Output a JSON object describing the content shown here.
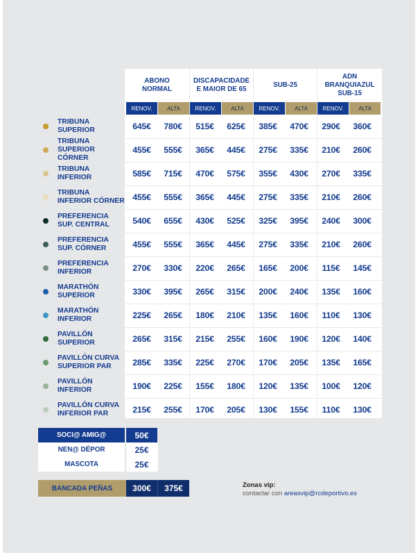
{
  "headers": [
    {
      "label": "ABONO\nNORMAL"
    },
    {
      "label": "DISCAPACIDADE\nE MAIOR DE 65"
    },
    {
      "label": "SUB-25"
    },
    {
      "label": "ADN\nBRANQUIAZUL\nSUB-15"
    }
  ],
  "subheaders": {
    "renov": "RENOV.",
    "alta": "ALTA"
  },
  "rows": [
    {
      "zone": "TRIBUNA\nSUPERIOR",
      "color": "#c89a2e",
      "prices": [
        "645€",
        "780€",
        "515€",
        "625€",
        "385€",
        "470€",
        "290€",
        "360€"
      ]
    },
    {
      "zone": "TRIBUNA\nSUPERIOR CÓRNER",
      "color": "#d0a95a",
      "prices": [
        "455€",
        "555€",
        "365€",
        "445€",
        "275€",
        "335€",
        "210€",
        "260€"
      ]
    },
    {
      "zone": "TRIBUNA\nINFERIOR",
      "color": "#d8c48d",
      "prices": [
        "585€",
        "715€",
        "470€",
        "575€",
        "355€",
        "430€",
        "270€",
        "335€"
      ]
    },
    {
      "zone": "TRIBUNA\nINFERIOR CÓRNER",
      "color": "#ebdcbb",
      "prices": [
        "455€",
        "555€",
        "365€",
        "445€",
        "275€",
        "335€",
        "210€",
        "260€"
      ]
    },
    {
      "zone": "PREFERENCIA\nSUP. CENTRAL",
      "color": "#0d2c2a",
      "prices": [
        "540€",
        "655€",
        "430€",
        "525€",
        "325€",
        "395€",
        "240€",
        "300€"
      ]
    },
    {
      "zone": "PREFERENCIA\nSUP. CÓRNER",
      "color": "#3f5e59",
      "prices": [
        "455€",
        "555€",
        "365€",
        "445€",
        "275€",
        "335€",
        "210€",
        "260€"
      ]
    },
    {
      "zone": "PREFERENCIA\nINFERIOR",
      "color": "#7c8f89",
      "prices": [
        "270€",
        "330€",
        "220€",
        "265€",
        "165€",
        "200€",
        "115€",
        "145€"
      ]
    },
    {
      "zone": "MARATHÓN\nSUPERIOR",
      "color": "#1d5fa6",
      "prices": [
        "330€",
        "395€",
        "265€",
        "315€",
        "200€",
        "240€",
        "135€",
        "160€"
      ]
    },
    {
      "zone": "MARATHÓN\nINFERIOR",
      "color": "#3e97c4",
      "prices": [
        "225€",
        "265€",
        "180€",
        "210€",
        "135€",
        "160€",
        "110€",
        "130€"
      ]
    },
    {
      "zone": "PAVILLÓN\nSUPERIOR",
      "color": "#2f6b3f",
      "prices": [
        "265€",
        "315€",
        "215€",
        "255€",
        "160€",
        "190€",
        "120€",
        "140€"
      ]
    },
    {
      "zone": "PAVILLÓN CURVA\nSUPERIOR PAR",
      "color": "#6a9a70",
      "prices": [
        "285€",
        "335€",
        "225€",
        "270€",
        "170€",
        "205€",
        "135€",
        "165€"
      ]
    },
    {
      "zone": "PAVILLÓN\nINFERIOR",
      "color": "#9ab39b",
      "prices": [
        "190€",
        "225€",
        "155€",
        "180€",
        "120€",
        "135€",
        "100€",
        "120€"
      ]
    },
    {
      "zone": "PAVILLÓN CURVA\nINFERIOR PAR",
      "color": "#bccdbd",
      "prices": [
        "215€",
        "255€",
        "170€",
        "205€",
        "130€",
        "155€",
        "110€",
        "130€"
      ]
    }
  ],
  "socios": [
    {
      "label": "SOCI@ AMIG@",
      "value": "50€"
    },
    {
      "label": "NEN@ DÉPOR",
      "value": "25€"
    },
    {
      "label": "MASCOTA",
      "value": "25€"
    }
  ],
  "bancada": {
    "label": "BANCADA PEÑAS",
    "renov": "300€",
    "alta": "375€"
  },
  "vip": {
    "title": "Zonas vip:",
    "text": "contactar con",
    "email": "areasvip@rcdeportivo.es"
  },
  "colors": {
    "navy": "#133b8f",
    "gold": "#b19d6c",
    "dark_navy": "#0f2e6b",
    "background": "#e6e7e9"
  }
}
